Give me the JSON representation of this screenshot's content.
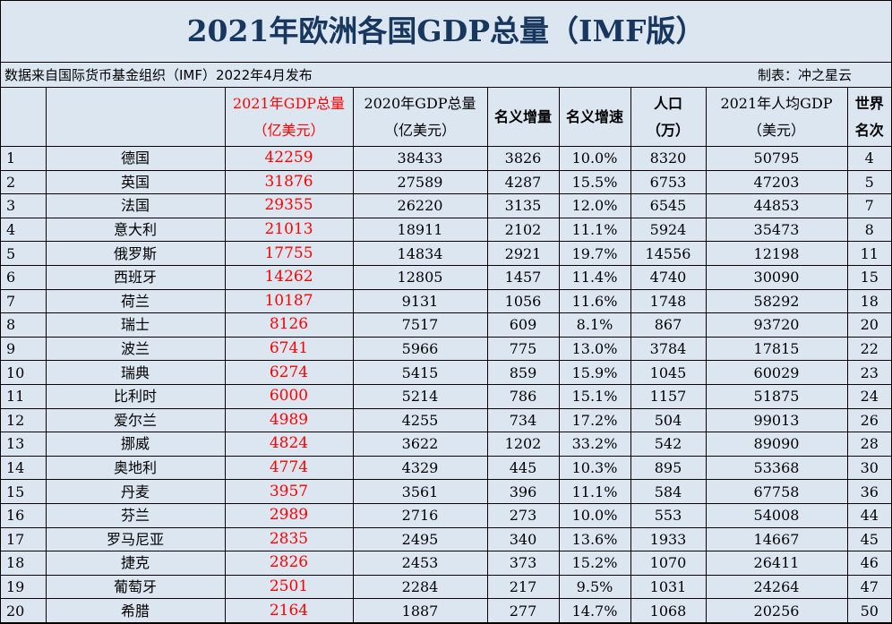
{
  "title": "2021年欧洲各国GDP总量（IMF版）",
  "source": "数据来自国际货币基金组织（IMF）2022年4月发布",
  "maker": "制表：冲之星云",
  "headers": {
    "gdp2021": [
      "2021年GDP总量",
      "（亿美元）"
    ],
    "gdp2020": [
      "2020年GDP总量",
      "（亿美元）"
    ],
    "nominal_increase": "名义增量",
    "nominal_growth": "名义增速",
    "population": [
      "人口",
      "（万）"
    ],
    "per_capita": [
      "2021年人均GDP",
      "（美元）"
    ],
    "world_rank": [
      "世界",
      "名次"
    ]
  },
  "rows": [
    {
      "rank": "1",
      "country": "德国",
      "gdp2021": "42259",
      "gdp2020": "38433",
      "inc": "3826",
      "growth": "10.0%",
      "pop": "8320",
      "pc": "50795",
      "world": "4"
    },
    {
      "rank": "2",
      "country": "英国",
      "gdp2021": "31876",
      "gdp2020": "27589",
      "inc": "4287",
      "growth": "15.5%",
      "pop": "6753",
      "pc": "47203",
      "world": "5"
    },
    {
      "rank": "3",
      "country": "法国",
      "gdp2021": "29355",
      "gdp2020": "26220",
      "inc": "3135",
      "growth": "12.0%",
      "pop": "6545",
      "pc": "44853",
      "world": "7"
    },
    {
      "rank": "4",
      "country": "意大利",
      "gdp2021": "21013",
      "gdp2020": "18911",
      "inc": "2102",
      "growth": "11.1%",
      "pop": "5924",
      "pc": "35473",
      "world": "8"
    },
    {
      "rank": "5",
      "country": "俄罗斯",
      "gdp2021": "17755",
      "gdp2020": "14834",
      "inc": "2921",
      "growth": "19.7%",
      "pop": "14556",
      "pc": "12198",
      "world": "11"
    },
    {
      "rank": "6",
      "country": "西班牙",
      "gdp2021": "14262",
      "gdp2020": "12805",
      "inc": "1457",
      "growth": "11.4%",
      "pop": "4740",
      "pc": "30090",
      "world": "15"
    },
    {
      "rank": "7",
      "country": "荷兰",
      "gdp2021": "10187",
      "gdp2020": "9131",
      "inc": "1056",
      "growth": "11.6%",
      "pop": "1748",
      "pc": "58292",
      "world": "18"
    },
    {
      "rank": "8",
      "country": "瑞士",
      "gdp2021": "8126",
      "gdp2020": "7517",
      "inc": "609",
      "growth": "8.1%",
      "pop": "867",
      "pc": "93720",
      "world": "20"
    },
    {
      "rank": "9",
      "country": "波兰",
      "gdp2021": "6741",
      "gdp2020": "5966",
      "inc": "775",
      "growth": "13.0%",
      "pop": "3784",
      "pc": "17815",
      "world": "22"
    },
    {
      "rank": "10",
      "country": "瑞典",
      "gdp2021": "6274",
      "gdp2020": "5415",
      "inc": "859",
      "growth": "15.9%",
      "pop": "1045",
      "pc": "60029",
      "world": "23"
    },
    {
      "rank": "11",
      "country": "比利时",
      "gdp2021": "6000",
      "gdp2020": "5214",
      "inc": "786",
      "growth": "15.1%",
      "pop": "1157",
      "pc": "51875",
      "world": "24"
    },
    {
      "rank": "12",
      "country": "爱尔兰",
      "gdp2021": "4989",
      "gdp2020": "4255",
      "inc": "734",
      "growth": "17.2%",
      "pop": "504",
      "pc": "99013",
      "world": "26"
    },
    {
      "rank": "13",
      "country": "挪威",
      "gdp2021": "4824",
      "gdp2020": "3622",
      "inc": "1202",
      "growth": "33.2%",
      "pop": "542",
      "pc": "89090",
      "world": "28"
    },
    {
      "rank": "14",
      "country": "奥地利",
      "gdp2021": "4774",
      "gdp2020": "4329",
      "inc": "445",
      "growth": "10.3%",
      "pop": "895",
      "pc": "53368",
      "world": "30"
    },
    {
      "rank": "15",
      "country": "丹麦",
      "gdp2021": "3957",
      "gdp2020": "3561",
      "inc": "396",
      "growth": "11.1%",
      "pop": "584",
      "pc": "67758",
      "world": "36"
    },
    {
      "rank": "16",
      "country": "芬兰",
      "gdp2021": "2989",
      "gdp2020": "2716",
      "inc": "273",
      "growth": "10.0%",
      "pop": "553",
      "pc": "54008",
      "world": "44"
    },
    {
      "rank": "17",
      "country": "罗马尼亚",
      "gdp2021": "2835",
      "gdp2020": "2495",
      "inc": "340",
      "growth": "13.6%",
      "pop": "1933",
      "pc": "14667",
      "world": "45"
    },
    {
      "rank": "18",
      "country": "捷克",
      "gdp2021": "2826",
      "gdp2020": "2453",
      "inc": "373",
      "growth": "15.2%",
      "pop": "1070",
      "pc": "26411",
      "world": "46"
    },
    {
      "rank": "19",
      "country": "葡萄牙",
      "gdp2021": "2501",
      "gdp2020": "2284",
      "inc": "217",
      "growth": "9.5%",
      "pop": "1031",
      "pc": "24264",
      "world": "47"
    },
    {
      "rank": "20",
      "country": "希腊",
      "gdp2021": "2164",
      "gdp2020": "1887",
      "inc": "277",
      "growth": "14.7%",
      "pop": "1068",
      "pc": "20256",
      "world": "50"
    }
  ],
  "colors": {
    "title": "#17375e",
    "highlight": "#ff0000",
    "background": "#dce6f1"
  }
}
